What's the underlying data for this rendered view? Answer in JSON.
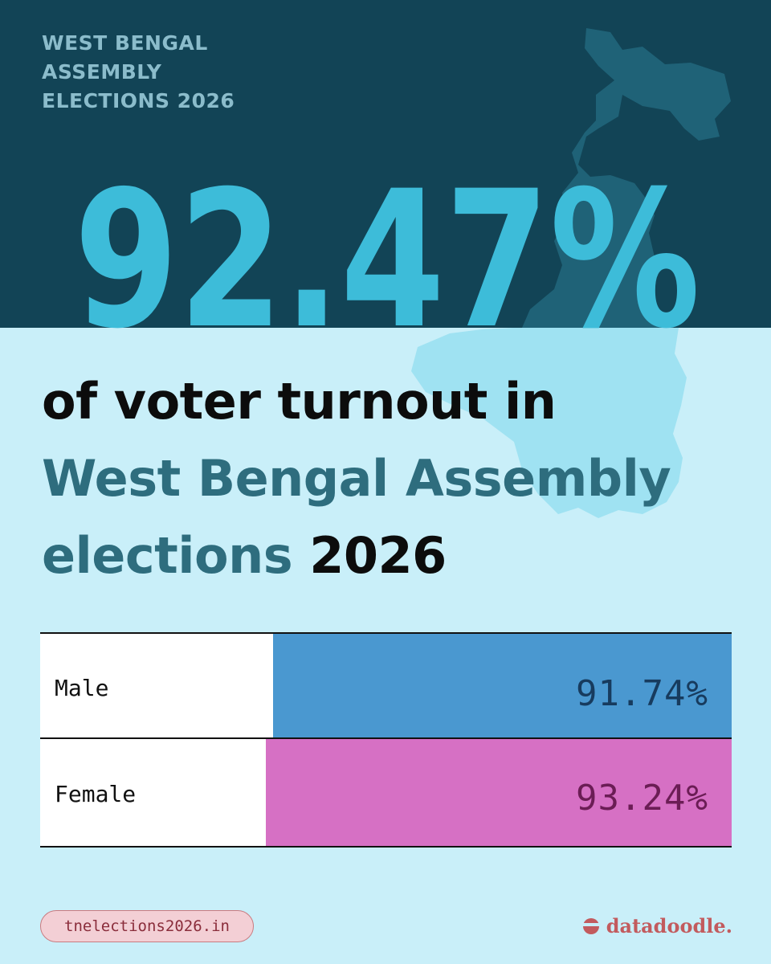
{
  "header": {
    "kicker_lines": [
      "WEST BENGAL",
      "ASSEMBLY",
      "ELECTIONS 2026"
    ]
  },
  "hero": {
    "big_number": "92.47%"
  },
  "headline": {
    "part1": "of voter turnout in",
    "part2": "West Bengal Assembly elections",
    "part3": "2026"
  },
  "chart_data": {
    "type": "bar",
    "categories": [
      "Male",
      "Female"
    ],
    "values": [
      91.74,
      93.24
    ],
    "value_labels": [
      "91.74%",
      "93.24%"
    ],
    "colors": [
      "#4a98d0",
      "#d670c4"
    ],
    "label_colors": [
      "#173b5e",
      "#6b1d55"
    ]
  },
  "footer": {
    "website": "tnelections2026.in",
    "brand": "datadoodle."
  },
  "colors": {
    "dark_band": "#124456",
    "accent_cyan": "#3dbcd9",
    "background": "#c9eff9",
    "teal_text": "#2e6d7e"
  },
  "icons": [
    "west-bengal-map-icon",
    "datadoodle-logo-icon"
  ]
}
